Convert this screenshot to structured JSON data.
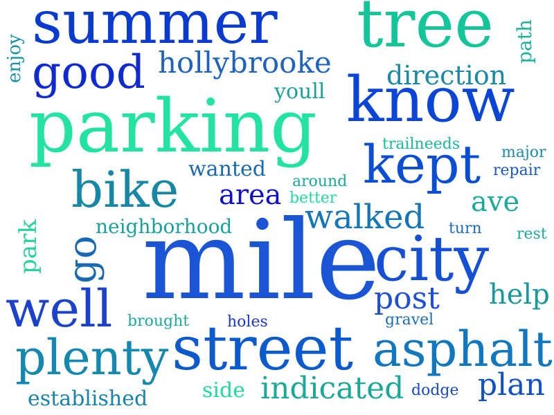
{
  "words": [
    {
      "text": "mile",
      "color": "#1a55d6"
    },
    {
      "text": "parking",
      "color": "#22e3a0"
    },
    {
      "text": "summer",
      "color": "#0a3bd0"
    },
    {
      "text": "tree",
      "color": "#12c69a"
    },
    {
      "text": "know",
      "color": "#0a45d8"
    },
    {
      "text": "street",
      "color": "#0b5ad0"
    },
    {
      "text": "city",
      "color": "#1450d6"
    },
    {
      "text": "kept",
      "color": "#0a4ed6"
    },
    {
      "text": "well",
      "color": "#1a42cc"
    },
    {
      "text": "bike",
      "color": "#1787a8"
    },
    {
      "text": "plenty",
      "color": "#1488b0"
    },
    {
      "text": "asphalt",
      "color": "#1177c0"
    },
    {
      "text": "good",
      "color": "#0e2ad0"
    },
    {
      "text": "hollybrooke",
      "color": "#1d63bf"
    },
    {
      "text": "go",
      "color": "#1769b6"
    },
    {
      "text": "walked",
      "color": "#1476b8"
    },
    {
      "text": "direction",
      "color": "#1a88a8"
    },
    {
      "text": "area",
      "color": "#1010c8"
    },
    {
      "text": "post",
      "color": "#1f4fd6"
    },
    {
      "text": "indicated",
      "color": "#1aa898"
    },
    {
      "text": "plan",
      "color": "#1150c8"
    },
    {
      "text": "ave",
      "color": "#19aa9a"
    },
    {
      "text": "help",
      "color": "#1897a0"
    },
    {
      "text": "neighborhood",
      "color": "#19a19a"
    },
    {
      "text": "established",
      "color": "#1583ae"
    },
    {
      "text": "wanted",
      "color": "#1868b2"
    },
    {
      "text": "park",
      "color": "#28d39a"
    },
    {
      "text": "youll",
      "color": "#1aa29a"
    },
    {
      "text": "side",
      "color": "#22d8a2"
    },
    {
      "text": "path",
      "color": "#19b39a"
    },
    {
      "text": "enjoy",
      "color": "#1592a8"
    },
    {
      "text": "trailneeds",
      "color": "#1ab89a"
    },
    {
      "text": "around",
      "color": "#1aa89c"
    },
    {
      "text": "better",
      "color": "#22d89e"
    },
    {
      "text": "major",
      "color": "#1a8aa8"
    },
    {
      "text": "repair",
      "color": "#1a57c6"
    },
    {
      "text": "turn",
      "color": "#1a6ab8"
    },
    {
      "text": "rest",
      "color": "#1aaa9c"
    },
    {
      "text": "brought",
      "color": "#1aa9a0"
    },
    {
      "text": "holes",
      "color": "#1b3bc6"
    },
    {
      "text": "gravel",
      "color": "#1a6fb8"
    },
    {
      "text": "dodge",
      "color": "#1a48c6"
    }
  ]
}
